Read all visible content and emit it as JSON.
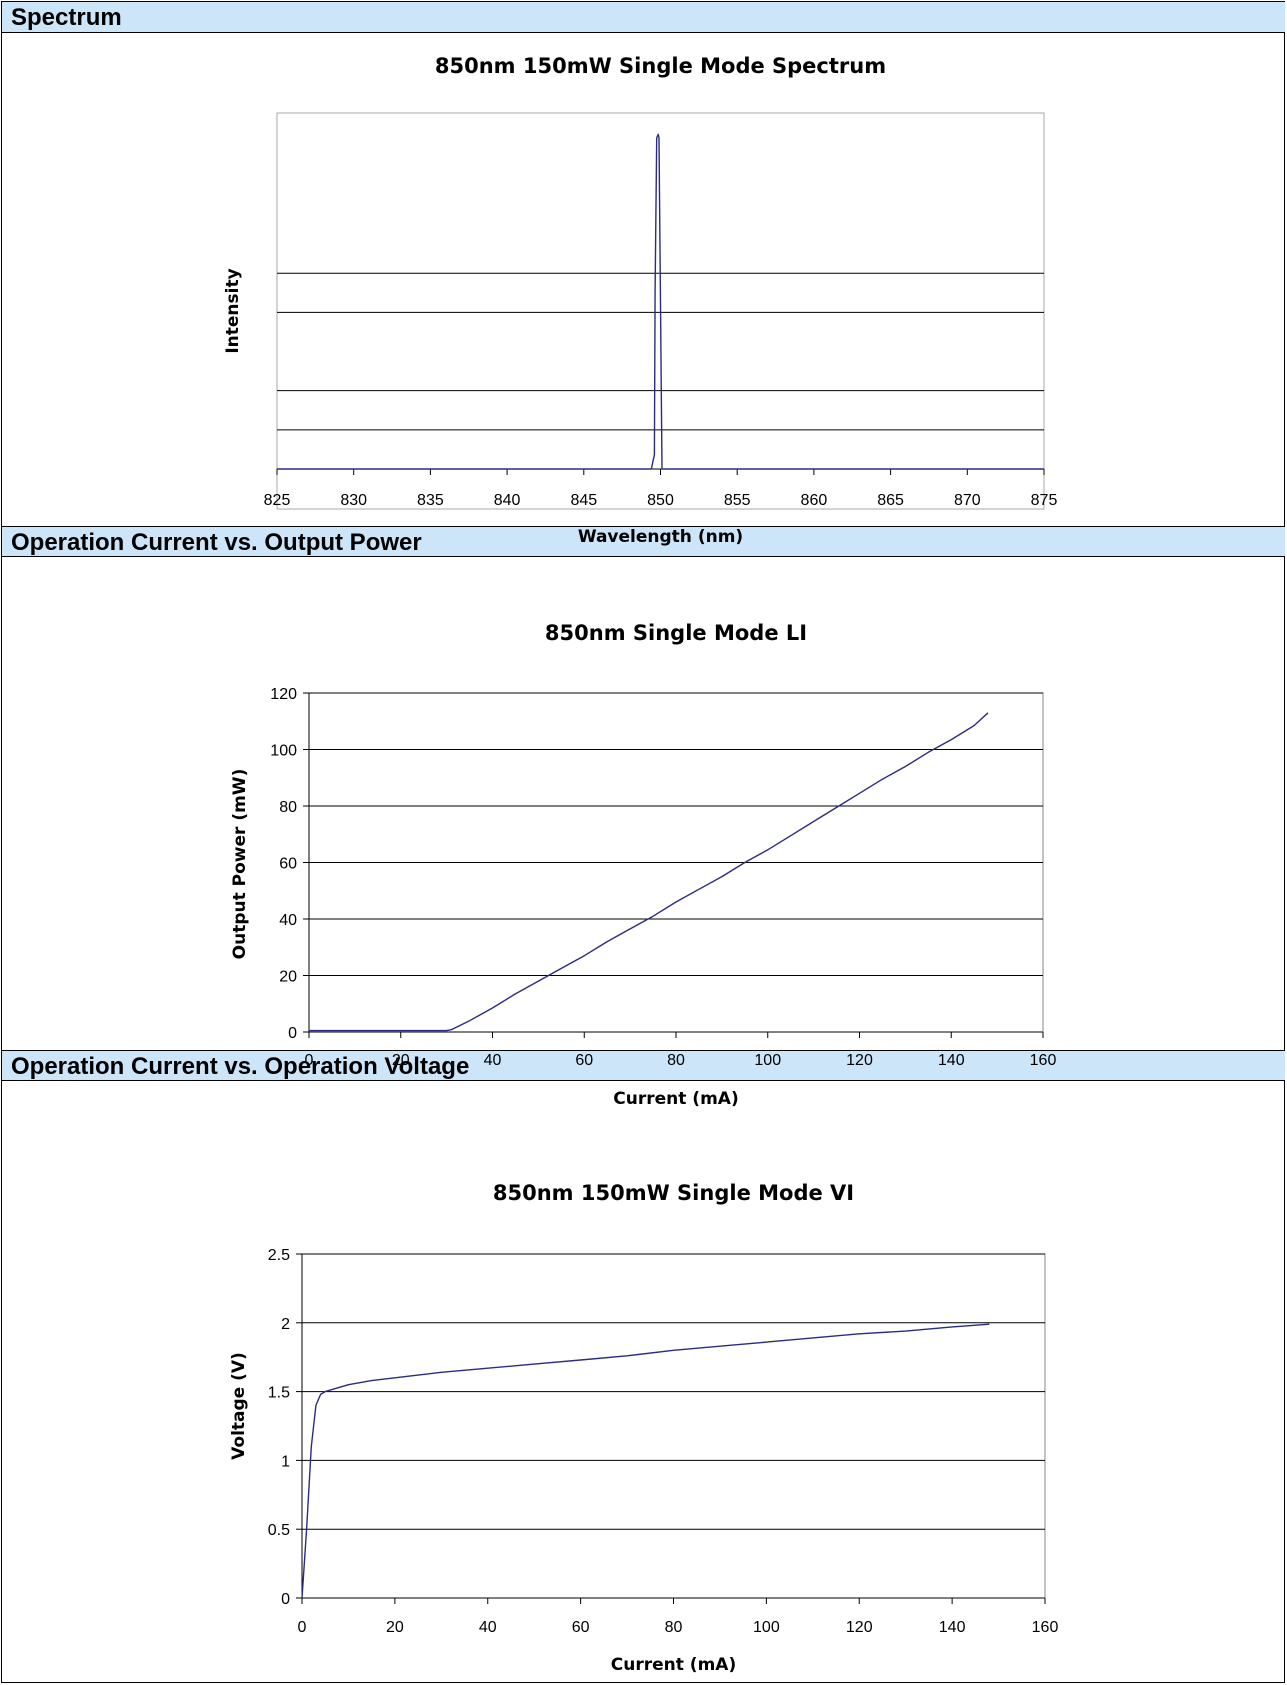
{
  "sections": [
    {
      "header": "Spectrum"
    },
    {
      "header": "Operation Current vs. Output Power"
    },
    {
      "header": "Operation Current vs. Operation Voltage"
    }
  ],
  "colors": {
    "header_bg": "#cce5f9",
    "series": "#2b2b86",
    "grid": "#000000"
  },
  "chart_data": [
    {
      "type": "line",
      "title": "850nm 150mW Single Mode Spectrum",
      "xlabel": "Wavelength (nm)",
      "ylabel": "Intensity",
      "xlim": [
        825,
        875
      ],
      "x_ticks": [
        "825",
        "830",
        "835",
        "840",
        "845",
        "850",
        "855",
        "860",
        "865",
        "870",
        "875"
      ],
      "ylim": [
        0,
        1
      ],
      "y_ticks": [],
      "gridlines_y": [
        0.11,
        0.22,
        0.44,
        0.55
      ],
      "grid": true,
      "series": [
        {
          "x": [
            825,
            849.4,
            849.6,
            849.65,
            849.75,
            849.85,
            849.9,
            850.1,
            875
          ],
          "y": [
            0,
            0,
            0.04,
            0.5,
            0.93,
            0.94,
            0.93,
            0,
            0
          ]
        }
      ]
    },
    {
      "type": "line",
      "title": "850nm Single Mode LI",
      "xlabel": "Current (mA)",
      "ylabel": "Output Power (mW)",
      "xlim": [
        0,
        160
      ],
      "x_ticks": [
        "0",
        "20",
        "40",
        "60",
        "80",
        "100",
        "120",
        "140",
        "160"
      ],
      "ylim": [
        0,
        120
      ],
      "y_ticks": [
        "0",
        "20",
        "40",
        "60",
        "80",
        "100",
        "120"
      ],
      "grid": true,
      "series": [
        {
          "x": [
            0,
            10,
            20,
            30,
            31,
            35,
            40,
            45,
            50,
            55,
            60,
            65,
            70,
            75,
            80,
            85,
            90,
            95,
            100,
            105,
            110,
            115,
            120,
            125,
            130,
            135,
            140,
            145,
            148
          ],
          "y": [
            0.5,
            0.5,
            0.5,
            0.5,
            0.8,
            4,
            8.5,
            13.5,
            18,
            22.5,
            27,
            32,
            36.5,
            41,
            46,
            50.5,
            55,
            60,
            64.5,
            69.5,
            74.5,
            79.5,
            84.5,
            89.5,
            94,
            99,
            103.5,
            108.5,
            113
          ]
        }
      ]
    },
    {
      "type": "line",
      "title": "850nm 150mW Single Mode VI",
      "xlabel": "Current (mA)",
      "ylabel": "Voltage (V)",
      "xlim": [
        0,
        160
      ],
      "x_ticks": [
        "0",
        "20",
        "40",
        "60",
        "80",
        "100",
        "120",
        "140",
        "160"
      ],
      "ylim": [
        0,
        2.5
      ],
      "y_ticks": [
        "0",
        "0.5",
        "1",
        "1.5",
        "2",
        "2.5"
      ],
      "grid": true,
      "series": [
        {
          "x": [
            0,
            1,
            2,
            3,
            4,
            5,
            10,
            15,
            20,
            30,
            40,
            50,
            60,
            70,
            80,
            90,
            100,
            110,
            120,
            130,
            140,
            148
          ],
          "y": [
            0,
            0.5,
            1.1,
            1.4,
            1.48,
            1.5,
            1.55,
            1.58,
            1.6,
            1.64,
            1.67,
            1.7,
            1.73,
            1.76,
            1.8,
            1.83,
            1.86,
            1.89,
            1.92,
            1.94,
            1.97,
            1.99
          ]
        }
      ]
    }
  ]
}
